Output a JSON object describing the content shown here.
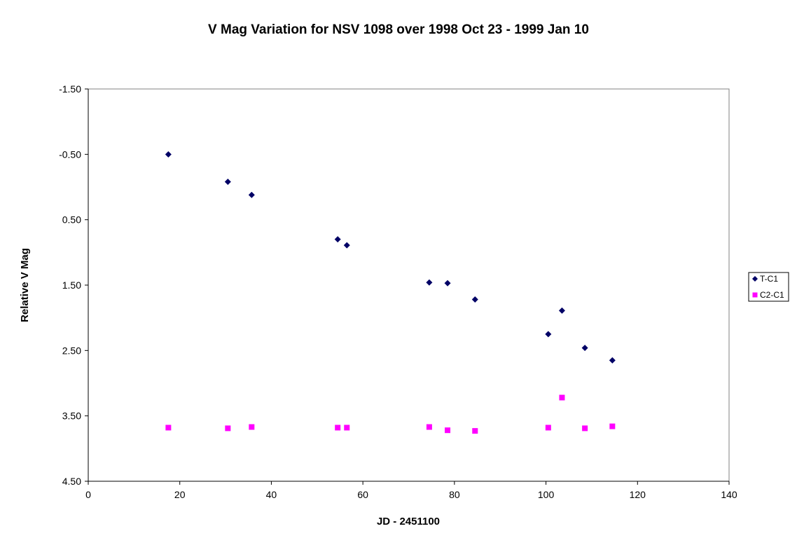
{
  "chart_data": {
    "type": "scatter",
    "title": "V Mag Variation for NSV 1098 over 1998 Oct 23 - 1999 Jan 10",
    "xlabel": "JD - 2451100",
    "ylabel": "Relative V Mag",
    "xlim": [
      0,
      140
    ],
    "ylim": [
      -1.5,
      4.5
    ],
    "y_reversed": true,
    "x_ticks": [
      0,
      20,
      40,
      60,
      80,
      100,
      120,
      140
    ],
    "x_tick_labels": [
      "0",
      "20",
      "40",
      "60",
      "80",
      "100",
      "120",
      "140"
    ],
    "y_ticks": [
      -1.5,
      -0.5,
      0.5,
      1.5,
      2.5,
      3.5,
      4.5
    ],
    "y_tick_labels": [
      "-1.50",
      "-0.50",
      "0.50",
      "1.50",
      "2.50",
      "3.50",
      "4.50"
    ],
    "grid": false,
    "legend_position": "right",
    "series": [
      {
        "name": "T-C1",
        "color": "#000066",
        "marker": "diamond",
        "points": [
          {
            "x": 17.5,
            "y": -0.5
          },
          {
            "x": 30.5,
            "y": -0.08
          },
          {
            "x": 35.7,
            "y": 0.12
          },
          {
            "x": 54.5,
            "y": 0.8
          },
          {
            "x": 56.5,
            "y": 0.89
          },
          {
            "x": 74.5,
            "y": 1.46
          },
          {
            "x": 78.5,
            "y": 1.47
          },
          {
            "x": 84.5,
            "y": 1.72
          },
          {
            "x": 100.5,
            "y": 2.25
          },
          {
            "x": 103.5,
            "y": 1.89
          },
          {
            "x": 108.5,
            "y": 2.46
          },
          {
            "x": 114.5,
            "y": 2.65
          }
        ]
      },
      {
        "name": "C2-C1",
        "color": "#ff00ff",
        "marker": "square",
        "points": [
          {
            "x": 17.5,
            "y": 3.68
          },
          {
            "x": 30.5,
            "y": 3.69
          },
          {
            "x": 35.7,
            "y": 3.67
          },
          {
            "x": 54.5,
            "y": 3.68
          },
          {
            "x": 56.5,
            "y": 3.68
          },
          {
            "x": 74.5,
            "y": 3.67
          },
          {
            "x": 78.5,
            "y": 3.72
          },
          {
            "x": 84.5,
            "y": 3.73
          },
          {
            "x": 100.5,
            "y": 3.68
          },
          {
            "x": 103.5,
            "y": 3.22
          },
          {
            "x": 108.5,
            "y": 3.69
          },
          {
            "x": 114.5,
            "y": 3.66
          }
        ]
      }
    ]
  }
}
